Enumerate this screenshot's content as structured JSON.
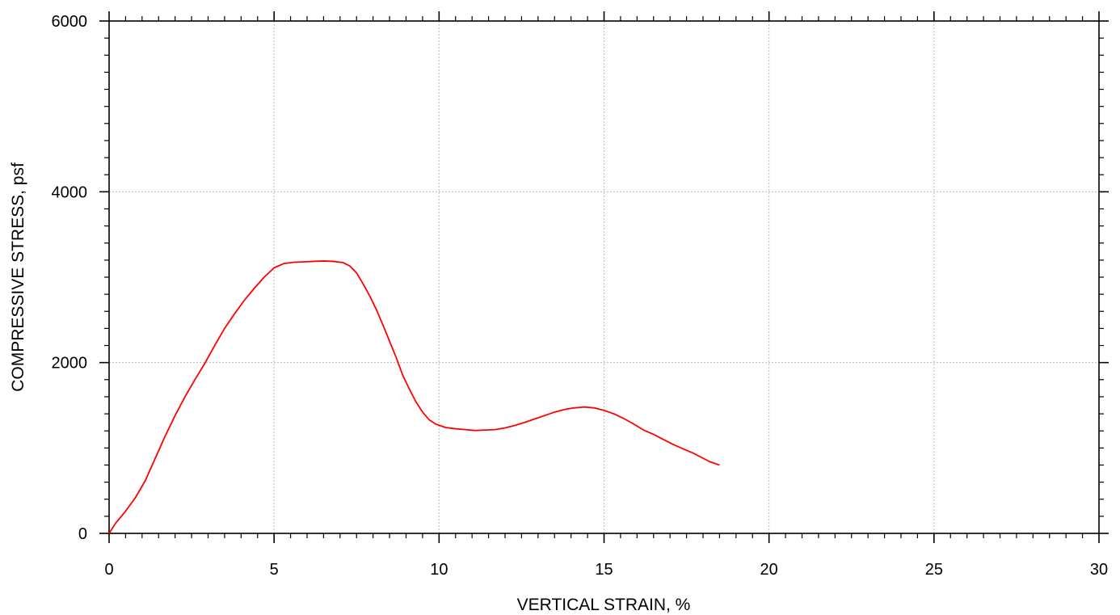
{
  "chart_data": {
    "type": "line",
    "title": "",
    "xlabel": "VERTICAL STRAIN, %",
    "ylabel": "COMPRESSIVE STRESS, psf",
    "xlim": [
      0,
      30
    ],
    "ylim": [
      0,
      6000
    ],
    "x_ticks": [
      0,
      5,
      10,
      15,
      20,
      25,
      30
    ],
    "y_ticks": [
      0,
      2000,
      4000,
      6000
    ],
    "x_tick_labels": [
      "0",
      "5",
      "10",
      "15",
      "20",
      "25",
      "30"
    ],
    "y_tick_labels": [
      "0",
      "2000",
      "4000",
      "6000"
    ],
    "grid": true,
    "legend": "none",
    "colors": {
      "line": "#ff0000",
      "grid": "#bbbbbb",
      "axis": "#000000"
    },
    "series": [
      {
        "color": "#ff0000",
        "points": [
          [
            0,
            0
          ],
          [
            0.2,
            120
          ],
          [
            0.5,
            260
          ],
          [
            0.8,
            420
          ],
          [
            1.1,
            620
          ],
          [
            1.4,
            880
          ],
          [
            1.7,
            1140
          ],
          [
            2.0,
            1380
          ],
          [
            2.3,
            1600
          ],
          [
            2.6,
            1800
          ],
          [
            2.9,
            1990
          ],
          [
            3.2,
            2200
          ],
          [
            3.5,
            2400
          ],
          [
            3.8,
            2570
          ],
          [
            4.1,
            2730
          ],
          [
            4.4,
            2870
          ],
          [
            4.7,
            3000
          ],
          [
            5.0,
            3110
          ],
          [
            5.3,
            3160
          ],
          [
            5.6,
            3175
          ],
          [
            5.9,
            3180
          ],
          [
            6.2,
            3185
          ],
          [
            6.5,
            3190
          ],
          [
            6.8,
            3185
          ],
          [
            7.1,
            3170
          ],
          [
            7.3,
            3130
          ],
          [
            7.5,
            3050
          ],
          [
            7.7,
            2920
          ],
          [
            7.9,
            2780
          ],
          [
            8.1,
            2620
          ],
          [
            8.3,
            2440
          ],
          [
            8.5,
            2250
          ],
          [
            8.7,
            2060
          ],
          [
            8.9,
            1850
          ],
          [
            9.1,
            1690
          ],
          [
            9.3,
            1540
          ],
          [
            9.5,
            1420
          ],
          [
            9.7,
            1330
          ],
          [
            9.9,
            1280
          ],
          [
            10.2,
            1240
          ],
          [
            10.5,
            1225
          ],
          [
            10.8,
            1215
          ],
          [
            11.1,
            1205
          ],
          [
            11.4,
            1210
          ],
          [
            11.7,
            1215
          ],
          [
            12.0,
            1235
          ],
          [
            12.3,
            1265
          ],
          [
            12.6,
            1300
          ],
          [
            12.9,
            1340
          ],
          [
            13.2,
            1380
          ],
          [
            13.5,
            1420
          ],
          [
            13.8,
            1450
          ],
          [
            14.1,
            1470
          ],
          [
            14.4,
            1480
          ],
          [
            14.7,
            1470
          ],
          [
            15.0,
            1440
          ],
          [
            15.3,
            1400
          ],
          [
            15.6,
            1345
          ],
          [
            15.9,
            1280
          ],
          [
            16.2,
            1210
          ],
          [
            16.5,
            1160
          ],
          [
            16.8,
            1100
          ],
          [
            17.1,
            1040
          ],
          [
            17.4,
            990
          ],
          [
            17.7,
            940
          ],
          [
            18.0,
            880
          ],
          [
            18.2,
            840
          ],
          [
            18.5,
            800
          ]
        ]
      }
    ]
  }
}
